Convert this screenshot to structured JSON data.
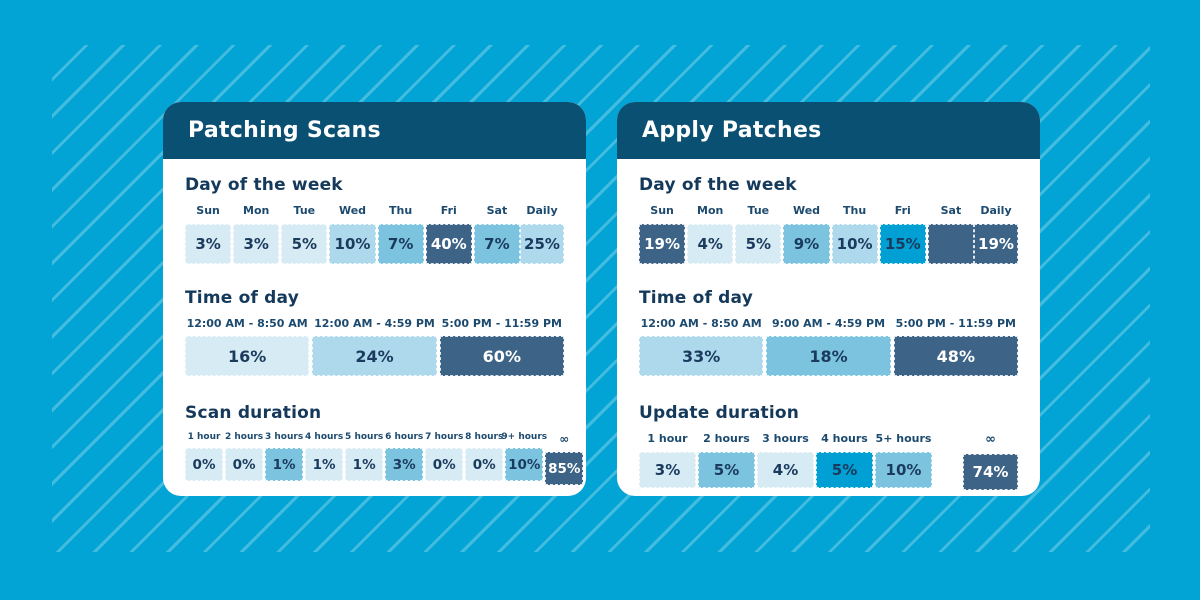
{
  "background": {
    "color": "#01a4d4",
    "stripe_color": "rgba(255,255,255,0.26)"
  },
  "palette": {
    "header_bar": "#0a5073",
    "heading_text": "#14395a",
    "label_text": "#1c4a6e",
    "value_text": "#1b3b5e",
    "lightest": "#d7ebf4",
    "light": "#aed9ec",
    "medium": "#7cc3e0",
    "cyan": "#00a0d4",
    "navy": "#3d6486"
  },
  "cards": [
    {
      "title": "Patching Scans",
      "sections": [
        {
          "heading": "Day of the week",
          "items": [
            {
              "label": "Sun",
              "value": "3%",
              "shade": "lightest"
            },
            {
              "label": "Mon",
              "value": "3%",
              "shade": "lightest"
            },
            {
              "label": "Tue",
              "value": "5%",
              "shade": "lightest"
            },
            {
              "label": "Wed",
              "value": "10%",
              "shade": "light"
            },
            {
              "label": "Thu",
              "value": "7%",
              "shade": "medium"
            },
            {
              "label": "Fri",
              "value": "40%",
              "shade": "navy"
            },
            {
              "label": "Sat",
              "value": "7%",
              "shade": "medium"
            }
          ],
          "summary": {
            "label": "Daily",
            "value": "25%",
            "shade": "light"
          }
        },
        {
          "heading": "Time of day",
          "items": [
            {
              "label": "12:00 AM - 8:50 AM",
              "value": "16%",
              "shade": "lightest"
            },
            {
              "label": "12:00 AM - 4:59 PM",
              "value": "24%",
              "shade": "light"
            },
            {
              "label": "5:00 PM - 11:59 PM",
              "value": "60%",
              "shade": "navy"
            }
          ]
        },
        {
          "heading": "Scan duration",
          "items": [
            {
              "label": "1 hour",
              "value": "0%",
              "shade": "lightest"
            },
            {
              "label": "2 hours",
              "value": "0%",
              "shade": "lightest"
            },
            {
              "label": "3 hours",
              "value": "1%",
              "shade": "medium"
            },
            {
              "label": "4 hours",
              "value": "1%",
              "shade": "lightest"
            },
            {
              "label": "5 hours",
              "value": "1%",
              "shade": "lightest"
            },
            {
              "label": "6 hours",
              "value": "3%",
              "shade": "medium"
            },
            {
              "label": "7 hours",
              "value": "0%",
              "shade": "lightest"
            },
            {
              "label": "8 hours",
              "value": "0%",
              "shade": "lightest"
            },
            {
              "label": "9+ hours",
              "value": "10%",
              "shade": "medium"
            },
            {
              "label": "∞",
              "value": "85%",
              "shade": "navy"
            }
          ]
        }
      ]
    },
    {
      "title": "Apply Patches",
      "sections": [
        {
          "heading": "Day of the week",
          "items": [
            {
              "label": "Sun",
              "value": "19%",
              "shade": "navy"
            },
            {
              "label": "Mon",
              "value": "4%",
              "shade": "lightest"
            },
            {
              "label": "Tue",
              "value": "5%",
              "shade": "lightest"
            },
            {
              "label": "Wed",
              "value": "9%",
              "shade": "medium"
            },
            {
              "label": "Thu",
              "value": "10%",
              "shade": "light"
            },
            {
              "label": "Fri",
              "value": "15%",
              "shade": "cyan"
            },
            {
              "label": "Sat",
              "value": "",
              "shade": "navy"
            }
          ],
          "summary": {
            "label": "Daily",
            "value": "19%",
            "shade": "navy"
          }
        },
        {
          "heading": "Time of day",
          "items": [
            {
              "label": "12:00 AM - 8:50 AM",
              "value": "33%",
              "shade": "light"
            },
            {
              "label": "9:00 AM - 4:59 PM",
              "value": "18%",
              "shade": "medium"
            },
            {
              "label": "5:00 PM - 11:59 PM",
              "value": "48%",
              "shade": "navy"
            }
          ]
        },
        {
          "heading": "Update duration",
          "items": [
            {
              "label": "1 hour",
              "value": "3%",
              "shade": "lightest"
            },
            {
              "label": "2 hours",
              "value": "5%",
              "shade": "medium"
            },
            {
              "label": "3 hours",
              "value": "4%",
              "shade": "lightest"
            },
            {
              "label": "4 hours",
              "value": "5%",
              "shade": "cyan"
            },
            {
              "label": "5+ hours",
              "value": "10%",
              "shade": "medium"
            }
          ],
          "summary": {
            "label": "∞",
            "value": "74%",
            "shade": "navy"
          }
        }
      ]
    }
  ],
  "chart_data": [
    {
      "type": "heatmap",
      "title": "Patching Scans",
      "unit": "%",
      "groups": [
        {
          "label": "Day of the week",
          "categories": [
            "Sun",
            "Mon",
            "Tue",
            "Wed",
            "Thu",
            "Fri",
            "Sat",
            "Daily"
          ],
          "values": [
            3,
            3,
            5,
            10,
            7,
            40,
            7,
            25
          ]
        },
        {
          "label": "Time of day",
          "categories": [
            "12:00 AM - 8:50 AM",
            "12:00 AM - 4:59 PM",
            "5:00 PM - 11:59 PM"
          ],
          "values": [
            16,
            24,
            60
          ]
        },
        {
          "label": "Scan duration",
          "categories": [
            "1 hour",
            "2 hours",
            "3 hours",
            "4 hours",
            "5 hours",
            "6 hours",
            "7 hours",
            "8 hours",
            "9+ hours",
            "∞"
          ],
          "values": [
            0,
            0,
            1,
            1,
            1,
            3,
            0,
            0,
            10,
            85
          ]
        }
      ]
    },
    {
      "type": "heatmap",
      "title": "Apply Patches",
      "unit": "%",
      "groups": [
        {
          "label": "Day of the week",
          "categories": [
            "Sun",
            "Mon",
            "Tue",
            "Wed",
            "Thu",
            "Fri",
            "Sat",
            "Daily"
          ],
          "values": [
            19,
            4,
            5,
            9,
            10,
            15,
            null,
            19
          ]
        },
        {
          "label": "Time of day",
          "categories": [
            "12:00 AM - 8:50 AM",
            "9:00 AM - 4:59 PM",
            "5:00 PM - 11:59 PM"
          ],
          "values": [
            33,
            18,
            48
          ]
        },
        {
          "label": "Update duration",
          "categories": [
            "1 hour",
            "2 hours",
            "3 hours",
            "4 hours",
            "5+ hours",
            "∞"
          ],
          "values": [
            3,
            5,
            4,
            5,
            10,
            74
          ]
        }
      ]
    }
  ]
}
